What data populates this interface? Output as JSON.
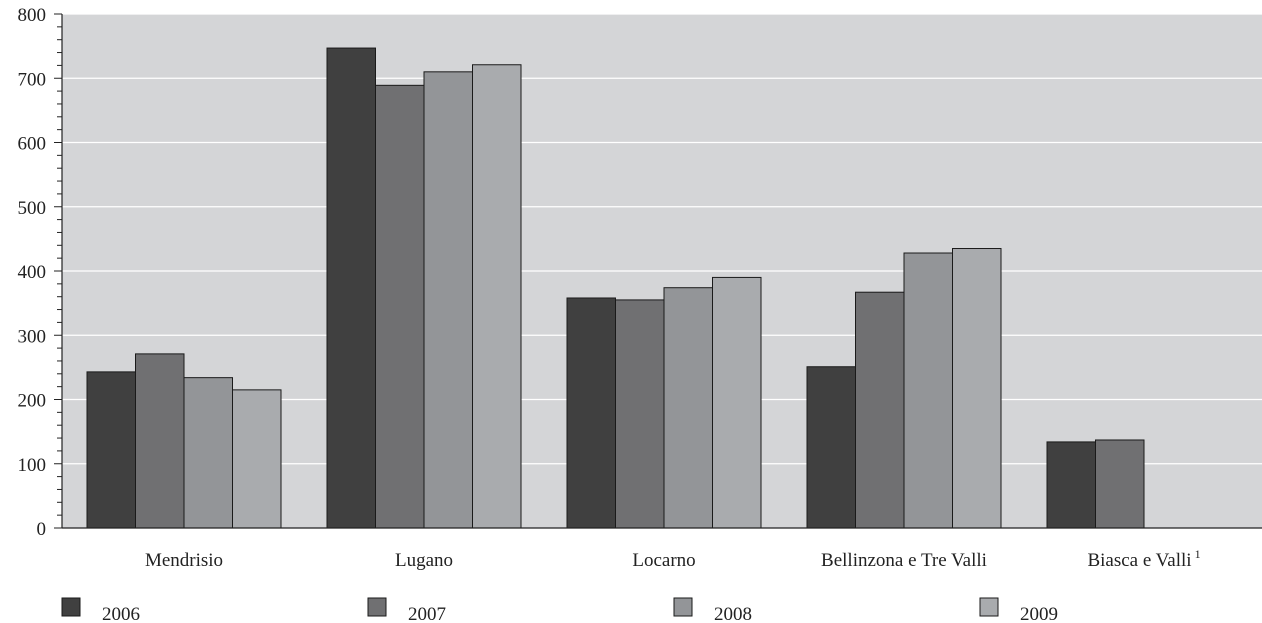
{
  "chart_data": {
    "type": "bar",
    "categories": [
      "Mendrisio",
      "Lugano",
      "Locarno",
      "Bellinzona e Tre Valli",
      "Biasca e Valli"
    ],
    "category_footnotes": [
      "",
      "",
      "",
      "",
      "1"
    ],
    "series": [
      {
        "name": "2006",
        "values": [
          243,
          747,
          358,
          251,
          134
        ],
        "color": "#404040"
      },
      {
        "name": "2007",
        "values": [
          271,
          689,
          355,
          367,
          137
        ],
        "color": "#707072"
      },
      {
        "name": "2008",
        "values": [
          234,
          710,
          374,
          428,
          null
        ],
        "color": "#939598"
      },
      {
        "name": "2009",
        "values": [
          215,
          721,
          390,
          435,
          null
        ],
        "color": "#a9abae"
      }
    ],
    "title": "",
    "xlabel": "",
    "ylabel": "",
    "ylim": [
      0,
      800
    ],
    "yticks": [
      0,
      100,
      200,
      300,
      400,
      500,
      600,
      700,
      800
    ],
    "grid": true,
    "legend_position": "bottom",
    "plot_background": "#d4d5d7"
  }
}
